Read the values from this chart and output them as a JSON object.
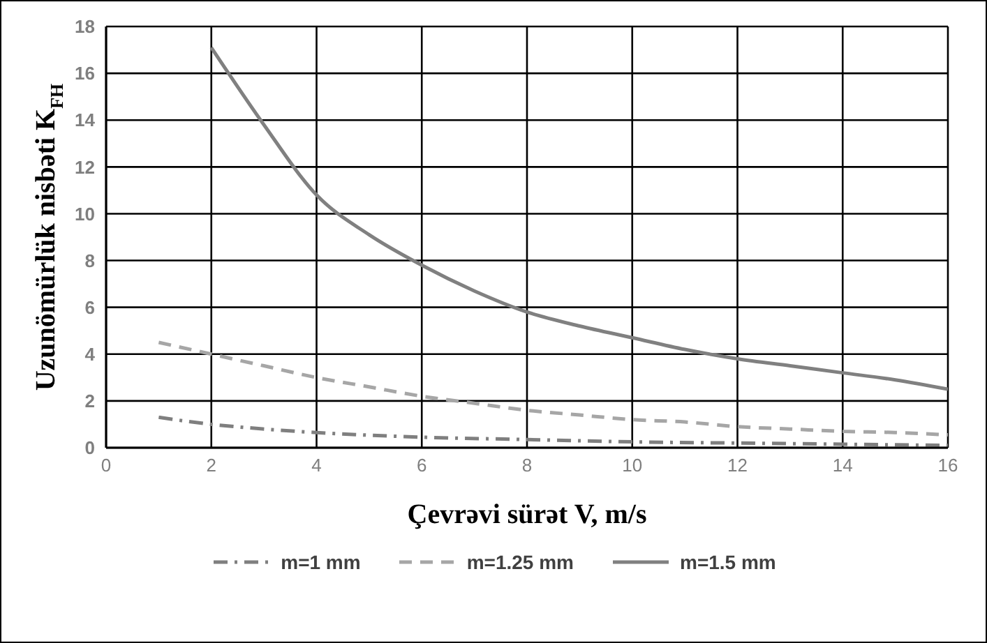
{
  "chart_data": {
    "type": "line",
    "xlabel": "Çevrəvi sürət V, m/s",
    "ylabel": "Uzunömürlük  nisbəti K$_{FH}$",
    "xlim": [
      0,
      16
    ],
    "xticks": [
      0,
      2,
      4,
      6,
      8,
      10,
      12,
      14,
      16
    ],
    "ylim": [
      0,
      18
    ],
    "yticks": [
      0,
      2,
      4,
      6,
      8,
      10,
      12,
      14,
      16,
      18
    ],
    "grid": true,
    "legend": "bottom",
    "marker": "none",
    "series": [
      {
        "name": "m=1 mm",
        "color": "#7f7f7f",
        "line_style": "dotted",
        "x": [
          1,
          2,
          3,
          4,
          6,
          8,
          10,
          12,
          14,
          16
        ],
        "values": [
          1.3,
          1.0,
          0.8,
          0.65,
          0.45,
          0.35,
          0.25,
          0.2,
          0.15,
          0.1
        ]
      },
      {
        "name": "m=1.25 mm",
        "color": "#a6a6a6",
        "line_style": "dashed",
        "x": [
          1,
          2,
          3,
          4,
          5,
          6,
          7,
          8,
          9,
          10,
          11,
          12,
          13,
          14,
          15,
          16
        ],
        "values": [
          4.5,
          4.0,
          3.5,
          3.0,
          2.6,
          2.2,
          1.9,
          1.6,
          1.4,
          1.2,
          1.1,
          0.9,
          0.8,
          0.7,
          0.65,
          0.55
        ]
      },
      {
        "name": "m=1.5 mm",
        "color": "#808080",
        "line_style": "solid",
        "x": [
          2,
          3,
          4,
          5,
          6,
          7,
          8,
          9,
          10,
          11,
          12,
          13,
          14,
          15,
          16
        ],
        "values": [
          17.1,
          13.8,
          10.8,
          9.1,
          7.8,
          6.7,
          5.8,
          5.2,
          4.7,
          4.2,
          3.8,
          3.5,
          3.2,
          2.9,
          2.5
        ]
      }
    ]
  }
}
